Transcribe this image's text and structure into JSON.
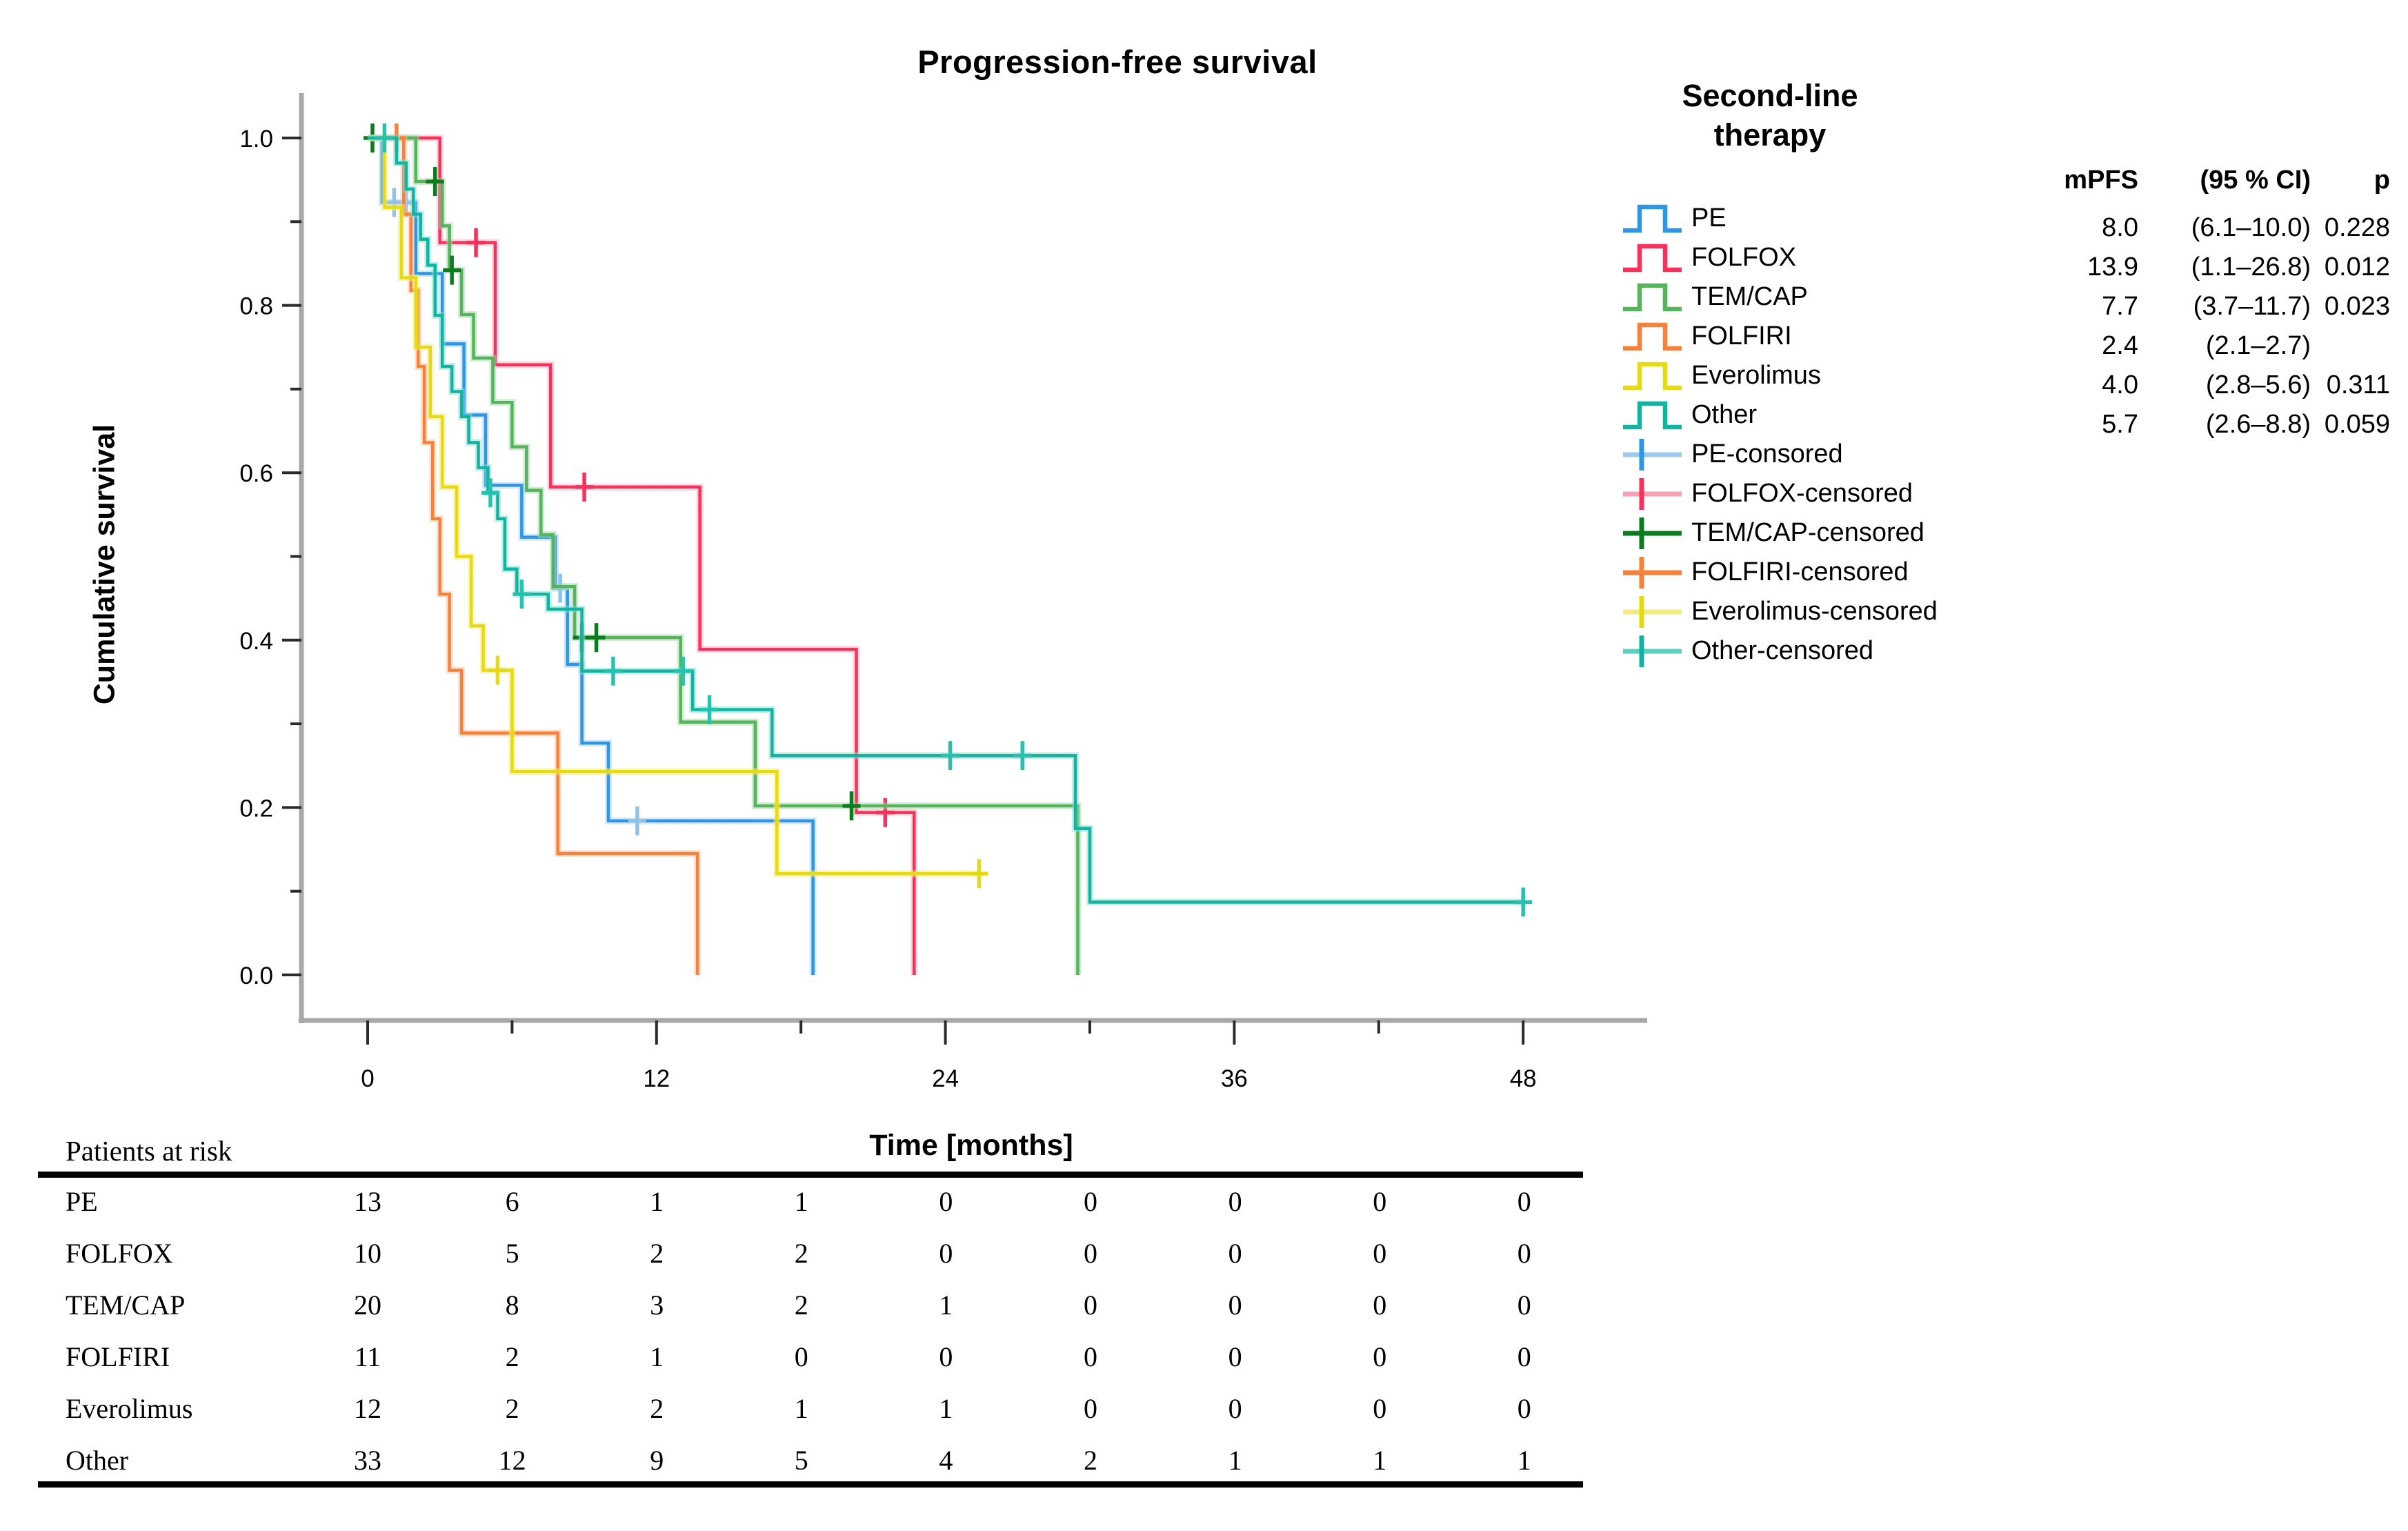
{
  "title": "Progression-free survival",
  "y_axis": {
    "label": "Cumulative survival",
    "tick_labels": [
      "0.0",
      "0.2",
      "0.4",
      "0.6",
      "0.8",
      "1.0"
    ]
  },
  "x_axis": {
    "label": "Time [months]",
    "tick_labels": [
      "0",
      "12",
      "24",
      "36",
      "48"
    ]
  },
  "legend": {
    "title_line1": "Second-line",
    "title_line2": "therapy",
    "items": [
      {
        "label": "PE",
        "type": "step",
        "color": "#2e96e6",
        "color2": "#9cc9ee"
      },
      {
        "label": "FOLFOX",
        "type": "step",
        "color": "#f7315b",
        "color2": "#f9a0b5"
      },
      {
        "label": "TEM/CAP",
        "type": "step",
        "color": "#56b45c",
        "color2": "#0b7d1f"
      },
      {
        "label": "FOLFIRI",
        "type": "step",
        "color": "#f8813a",
        "color2": "#fcc4a0"
      },
      {
        "label": "Everolimus",
        "type": "step",
        "color": "#e7da11",
        "color2": "#f2eb82"
      },
      {
        "label": "Other",
        "type": "step",
        "color": "#10b5a2",
        "color2": "#8adfd4"
      },
      {
        "label": "PE-consored",
        "type": "cross",
        "color": "#2e96e6",
        "color2": "#9cc9ee"
      },
      {
        "label": "FOLFOX-censored",
        "type": "cross",
        "color": "#f7315b",
        "color2": "#f9a0b5"
      },
      {
        "label": "TEM/CAP-censored",
        "type": "cross",
        "color": "#0b7d1f",
        "color2": "#0b7d1f"
      },
      {
        "label": "FOLFIRI-censored",
        "type": "cross",
        "color": "#f8813a",
        "color2": "#f8813a"
      },
      {
        "label": "Everolimus-censored",
        "type": "cross",
        "color": "#e7da11",
        "color2": "#f2eb82"
      },
      {
        "label": "Other-censored",
        "type": "cross",
        "color": "#10b5a2",
        "color2": "#5ed0c0"
      }
    ]
  },
  "stats": {
    "col_headers": [
      "mPFS",
      "(95 % CI)",
      "p"
    ],
    "rows": [
      {
        "therapy": "PE",
        "mpfs": "8.0",
        "ci": "(6.1–10.0)",
        "p": "0.228"
      },
      {
        "therapy": "FOLFOX",
        "mpfs": "13.9",
        "ci": "(1.1–26.8)",
        "p": "0.012"
      },
      {
        "therapy": "TEM/CAP",
        "mpfs": "7.7",
        "ci": "(3.7–11.7)",
        "p": "0.023"
      },
      {
        "therapy": "FOLFIRI",
        "mpfs": "2.4",
        "ci": "(2.1–2.7)",
        "p": ""
      },
      {
        "therapy": "Everolimus",
        "mpfs": "4.0",
        "ci": "(2.8–5.6)",
        "p": "0.311"
      },
      {
        "therapy": "Other",
        "mpfs": "5.7",
        "ci": "(2.6–8.8)",
        "p": "0.059"
      }
    ]
  },
  "risk_table": {
    "corner_label": "Patients at risk",
    "time_points": [
      0,
      6,
      12,
      18,
      24,
      30,
      36,
      42,
      48
    ],
    "rows": [
      {
        "label": "PE",
        "values": [
          "13",
          "6",
          "1",
          "1",
          "0",
          "0",
          "0",
          "0",
          "0"
        ]
      },
      {
        "label": "FOLFOX",
        "values": [
          "10",
          "5",
          "2",
          "2",
          "0",
          "0",
          "0",
          "0",
          "0"
        ]
      },
      {
        "label": "TEM/CAP",
        "values": [
          "20",
          "8",
          "3",
          "2",
          "1",
          "0",
          "0",
          "0",
          "0"
        ]
      },
      {
        "label": "FOLFIRI",
        "values": [
          "11",
          "2",
          "1",
          "0",
          "0",
          "0",
          "0",
          "0",
          "0"
        ]
      },
      {
        "label": "Everolimus",
        "values": [
          "12",
          "2",
          "2",
          "1",
          "1",
          "0",
          "0",
          "0",
          "0"
        ]
      },
      {
        "label": "Other",
        "values": [
          "33",
          "12",
          "9",
          "5",
          "4",
          "2",
          "1",
          "1",
          "1"
        ]
      }
    ]
  },
  "chart_data": {
    "type": "line",
    "subtype": "kaplan-meier-step",
    "title": "Progression-free survival",
    "xlabel": "Time [months]",
    "ylabel": "Cumulative survival",
    "xlim": [
      0,
      48
    ],
    "ylim": [
      0,
      1
    ],
    "xticks_major": [
      0,
      12,
      24,
      36,
      48
    ],
    "xticks_minor": [
      6,
      18,
      30,
      42
    ],
    "yticks_major": [
      0,
      0.2,
      0.4,
      0.6,
      0.8,
      1.0
    ],
    "yticks_minor": [
      0.1,
      0.3,
      0.5,
      0.7,
      0.9
    ],
    "grid": false,
    "legend_position": "right",
    "series": [
      {
        "name": "PE",
        "color": "#2e96e6",
        "halo": "#a9d2f0",
        "censor_color": "#8fc3ec",
        "steps": [
          [
            0.6,
            0.923
          ],
          [
            2.0,
            0.838
          ],
          [
            3.1,
            0.754
          ],
          [
            4.0,
            0.669
          ],
          [
            4.9,
            0.585
          ],
          [
            6.4,
            0.523
          ],
          [
            7.8,
            0.462
          ],
          [
            8.3,
            0.371
          ],
          [
            8.9,
            0.277
          ],
          [
            10.0,
            0.184
          ],
          [
            18.5,
            0
          ]
        ],
        "end": 18.5,
        "censors": [
          [
            1.1,
            0.923
          ],
          [
            1.6,
            0.923
          ],
          [
            8.0,
            0.462
          ],
          [
            11.2,
            0.184
          ]
        ]
      },
      {
        "name": "FOLFOX",
        "color": "#f7315b",
        "halo": "#fbadbf",
        "censor_color": "#f7315b",
        "steps": [
          [
            3.0,
            0.875
          ],
          [
            5.3,
            0.729
          ],
          [
            7.6,
            0.583
          ],
          [
            13.8,
            0.389
          ],
          [
            20.3,
            0.194
          ],
          [
            22.7,
            0
          ]
        ],
        "end": 22.7,
        "censors": [
          [
            4.5,
            0.875
          ],
          [
            9.0,
            0.583
          ],
          [
            21.5,
            0.194
          ]
        ]
      },
      {
        "name": "TEM/CAP",
        "color": "#56b45c",
        "halo": "#a8d8aa",
        "censor_color": "#0b7d1f",
        "steps": [
          [
            2.0,
            0.948
          ],
          [
            3.1,
            0.895
          ],
          [
            3.4,
            0.842
          ],
          [
            3.9,
            0.789
          ],
          [
            4.4,
            0.737
          ],
          [
            5.2,
            0.684
          ],
          [
            6.0,
            0.631
          ],
          [
            6.6,
            0.579
          ],
          [
            7.2,
            0.526
          ],
          [
            7.7,
            0.464
          ],
          [
            8.6,
            0.403
          ],
          [
            13.0,
            0.302
          ],
          [
            16.1,
            0.202
          ],
          [
            29.5,
            0
          ]
        ],
        "end": 29.5,
        "censors": [
          [
            0.2,
            1.0
          ],
          [
            2.8,
            0.948
          ],
          [
            3.5,
            0.842
          ],
          [
            8.9,
            0.403
          ],
          [
            9.5,
            0.403
          ],
          [
            20.1,
            0.202
          ]
        ]
      },
      {
        "name": "FOLFIRI",
        "color": "#f8813a",
        "halo": "#fcc4a0",
        "censor_color": "#f8813a",
        "steps": [
          [
            1.5,
            0.909
          ],
          [
            1.8,
            0.818
          ],
          [
            2.1,
            0.727
          ],
          [
            2.35,
            0.636
          ],
          [
            2.7,
            0.545
          ],
          [
            3.0,
            0.455
          ],
          [
            3.4,
            0.364
          ],
          [
            3.9,
            0.289
          ],
          [
            7.9,
            0.145
          ],
          [
            13.7,
            0
          ]
        ],
        "end": 13.7,
        "censors": [
          [
            1.2,
            1.0
          ]
        ]
      },
      {
        "name": "Everolimus",
        "color": "#e7da11",
        "halo": "#f2eb82",
        "censor_color": "#e7da11",
        "steps": [
          [
            0.7,
            0.917
          ],
          [
            1.4,
            0.833
          ],
          [
            2.0,
            0.75
          ],
          [
            2.6,
            0.667
          ],
          [
            3.1,
            0.583
          ],
          [
            3.7,
            0.5
          ],
          [
            4.3,
            0.417
          ],
          [
            4.8,
            0.364
          ],
          [
            6.0,
            0.243
          ],
          [
            17.0,
            0.121
          ]
        ],
        "end": 25.4,
        "censors": [
          [
            5.4,
            0.364
          ],
          [
            25.4,
            0.121
          ]
        ]
      },
      {
        "name": "Other",
        "color": "#10b5a2",
        "halo": "#8adfd4",
        "censor_color": "#26c2af",
        "steps": [
          [
            1.2,
            0.97
          ],
          [
            1.6,
            0.939
          ],
          [
            1.9,
            0.909
          ],
          [
            2.2,
            0.879
          ],
          [
            2.5,
            0.848
          ],
          [
            2.8,
            0.788
          ],
          [
            3.1,
            0.727
          ],
          [
            3.5,
            0.697
          ],
          [
            3.9,
            0.667
          ],
          [
            4.2,
            0.636
          ],
          [
            4.6,
            0.606
          ],
          [
            5.0,
            0.576
          ],
          [
            5.4,
            0.545
          ],
          [
            5.7,
            0.485
          ],
          [
            6.2,
            0.455
          ],
          [
            7.5,
            0.437
          ],
          [
            8.9,
            0.363
          ],
          [
            13.5,
            0.317
          ],
          [
            16.8,
            0.262
          ],
          [
            29.4,
            0.175
          ],
          [
            30.0,
            0.087
          ]
        ],
        "end": 48,
        "censors": [
          [
            0.7,
            1.0
          ],
          [
            5.1,
            0.576
          ],
          [
            6.4,
            0.455
          ],
          [
            10.2,
            0.363
          ],
          [
            13.1,
            0.363
          ],
          [
            14.2,
            0.317
          ],
          [
            24.2,
            0.262
          ],
          [
            27.2,
            0.262
          ],
          [
            48,
            0.087
          ]
        ]
      }
    ]
  }
}
